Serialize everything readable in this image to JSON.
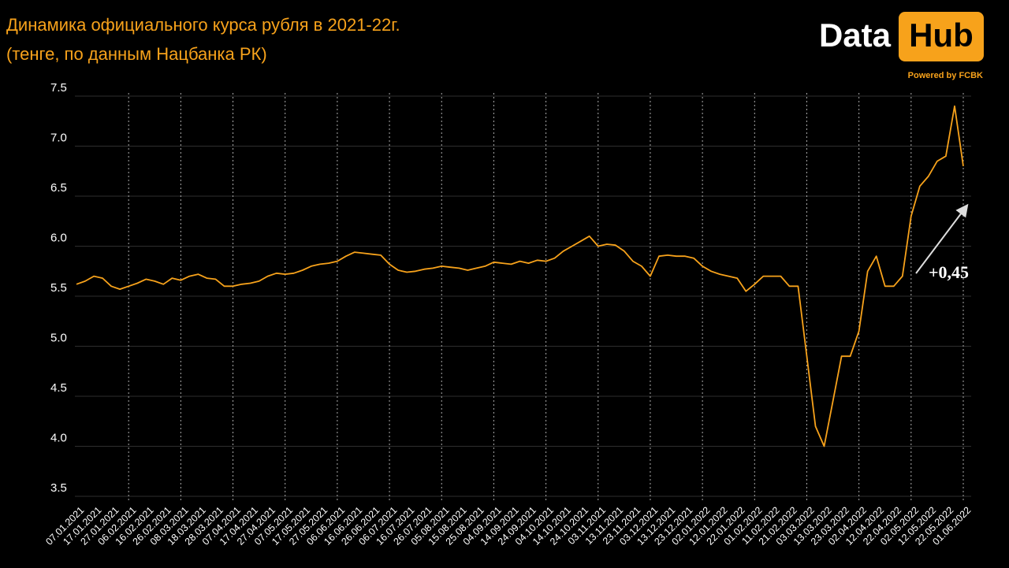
{
  "chart_data": {
    "type": "line",
    "title": "Динамика официального курса рубля в 2021-22г.",
    "subtitle": "(тенге, по данным Нацбанка РК)",
    "annotation": "+0,45",
    "color": "#f7a21b",
    "categories": [
      "07.01.2021",
      null,
      "17.01.2021",
      null,
      "27.01.2021",
      null,
      "06.02.2021",
      null,
      "16.02.2021",
      null,
      "26.02.2021",
      null,
      "08.03.2021",
      null,
      "18.03.2021",
      null,
      "28.03.2021",
      null,
      "07.04.2021",
      null,
      "17.04.2021",
      null,
      "27.04.2021",
      null,
      "07.05.2021",
      null,
      "17.05.2021",
      null,
      "27.05.2021",
      null,
      "06.06.2021",
      null,
      "16.06.2021",
      null,
      "26.06.2021",
      null,
      "06.07.2021",
      null,
      "16.07.2021",
      null,
      "26.07.2021",
      null,
      "05.08.2021",
      null,
      "15.08.2021",
      null,
      "25.08.2021",
      null,
      "04.09.2021",
      null,
      "14.09.2021",
      null,
      "24.09.2021",
      null,
      "04.10.2021",
      null,
      "14.10.2021",
      null,
      "24.10.2021",
      null,
      "03.11.2021",
      null,
      "13.11.2021",
      null,
      "23.11.2021",
      null,
      "03.12.2021",
      null,
      "13.12.2021",
      null,
      "23.12.2021",
      null,
      "02.01.2022",
      null,
      "12.01.2022",
      null,
      "22.01.2022",
      null,
      "01.02.2022",
      null,
      "11.02.2022",
      null,
      "21.02.2022",
      null,
      "03.03.2022",
      null,
      "13.03.2022",
      null,
      "23.03.2022",
      null,
      "02.04.2022",
      null,
      "12.04.2022",
      null,
      "22.04.2022",
      null,
      "02.05.2022",
      null,
      "12.05.2022",
      null,
      "22.05.2022",
      null,
      "01.06.2022"
    ],
    "values": [
      5.62,
      5.65,
      5.7,
      5.68,
      5.6,
      5.57,
      5.6,
      5.63,
      5.67,
      5.65,
      5.62,
      5.68,
      5.66,
      5.7,
      5.72,
      5.68,
      5.67,
      5.6,
      5.6,
      5.62,
      5.63,
      5.65,
      5.7,
      5.73,
      5.72,
      5.73,
      5.76,
      5.8,
      5.82,
      5.83,
      5.85,
      5.9,
      5.94,
      5.93,
      5.92,
      5.91,
      5.82,
      5.76,
      5.74,
      5.75,
      5.77,
      5.78,
      5.8,
      5.79,
      5.78,
      5.76,
      5.78,
      5.8,
      5.84,
      5.83,
      5.82,
      5.85,
      5.83,
      5.86,
      5.85,
      5.88,
      5.95,
      6.0,
      6.05,
      6.1,
      6.0,
      6.02,
      6.01,
      5.95,
      5.85,
      5.8,
      5.7,
      5.9,
      5.91,
      5.9,
      5.9,
      5.88,
      5.8,
      5.75,
      5.72,
      5.7,
      5.68,
      5.55,
      5.62,
      5.7,
      5.7,
      5.7,
      5.6,
      5.6,
      4.9,
      4.2,
      4.0,
      4.45,
      4.9,
      4.9,
      5.15,
      5.75,
      5.9,
      5.6,
      5.6,
      5.7,
      6.3,
      6.6,
      6.7,
      6.85,
      6.9,
      7.4,
      6.8
    ],
    "ylim": [
      3.5,
      7.5
    ],
    "yticks": [
      {
        "value": 3.5,
        "label": "3.5"
      },
      {
        "value": 4,
        "label": "4.0"
      },
      {
        "value": 4.5,
        "label": "4.5"
      },
      {
        "value": 5,
        "label": "5.0"
      },
      {
        "value": 5.5,
        "label": "5.5"
      },
      {
        "value": 6,
        "label": "6.0"
      },
      {
        "value": 6.5,
        "label": "6.5"
      },
      {
        "value": 7,
        "label": "7.0"
      },
      {
        "value": 7.5,
        "label": "7.5"
      }
    ],
    "grid": true
  },
  "logo": {
    "word1": "Data",
    "word2": "Hub",
    "tagline": "Powered by FCBK"
  }
}
